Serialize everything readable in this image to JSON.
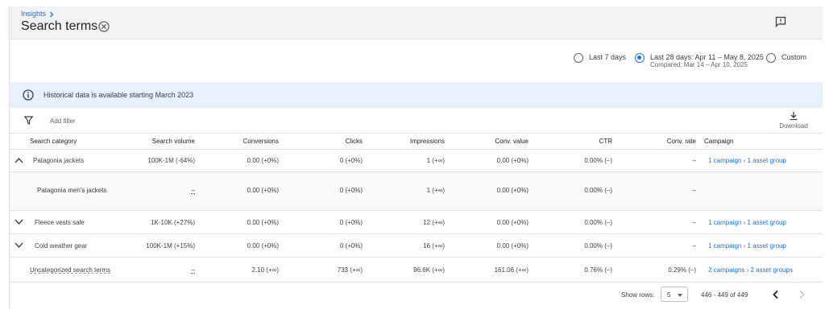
{
  "header": {
    "breadcrumb": "Insights",
    "title": "Search terms"
  },
  "date_range": {
    "options": [
      {
        "label": "Last 7 days",
        "selected": false
      },
      {
        "label": "Last 28 days: Apr 11 – May 8, 2025",
        "sub": "Compared: Mar 14 – Apr 10, 2025",
        "selected": true
      },
      {
        "label": "Custom",
        "selected": false
      }
    ]
  },
  "info_banner": "Historical data is available starting March 2023",
  "toolbar": {
    "add_filter": "Add filter",
    "download": "Download"
  },
  "table": {
    "columns": [
      "Search category",
      "Search volume",
      "Conversions",
      "Clicks",
      "Impressions",
      "Conv. value",
      "CTR",
      "Conv. rate",
      "Campaign"
    ],
    "rows": [
      {
        "name": "Patagonia jackets",
        "volume": "100K-1M (-64%)",
        "conversions": "0.00 (+0%)",
        "clicks": "0 (+0%)",
        "impressions": "1 (+∞)",
        "conv_value": "0.00 (+0%)",
        "ctr": "0.00% (–)",
        "conv_rate": "–",
        "campaign": "1 campaign › 1 asset group"
      },
      {
        "name": "Patagonia men's jackets",
        "volume": "–",
        "conversions": "0.00 (+0%)",
        "clicks": "0 (+0%)",
        "impressions": "1 (+∞)",
        "conv_value": "0.00 (+0%)",
        "ctr": "0.00% (–)",
        "conv_rate": "–",
        "campaign": ""
      },
      {
        "name": "Fleece vests sale",
        "volume": "1K-10K (+27%)",
        "conversions": "0.00 (+0%)",
        "clicks": "0 (+0%)",
        "impressions": "12 (+∞)",
        "conv_value": "0.00 (+0%)",
        "ctr": "0.00% (–)",
        "conv_rate": "–",
        "campaign": "1 campaign › 1 asset group"
      },
      {
        "name": "Cold weather gear",
        "volume": "100K-1M (+15%)",
        "conversions": "0.00 (+0%)",
        "clicks": "0 (+0%)",
        "impressions": "16 (+∞)",
        "conv_value": "0.00 (+0%)",
        "ctr": "0.00% (–)",
        "conv_rate": "–",
        "campaign": "1 campaign › 1 asset group"
      },
      {
        "name": "Uncategorized search terms",
        "volume": "–",
        "conversions": "2.10 (+∞)",
        "clicks": "733 (+∞)",
        "impressions": "96.6K (+∞)",
        "conv_value": "161.06 (+∞)",
        "ctr": "0.76% (–)",
        "conv_rate": "0.29% (–)",
        "campaign": "2 campaigns › 2 asset groups"
      }
    ]
  },
  "footer": {
    "show_rows_label": "Show rows:",
    "show_rows_value": "5",
    "range": "446 - 449 of 449"
  },
  "colors": {
    "accent": "#1a73e8",
    "banner": "#e8f0fe",
    "header_bg": "#f1f3f4"
  }
}
